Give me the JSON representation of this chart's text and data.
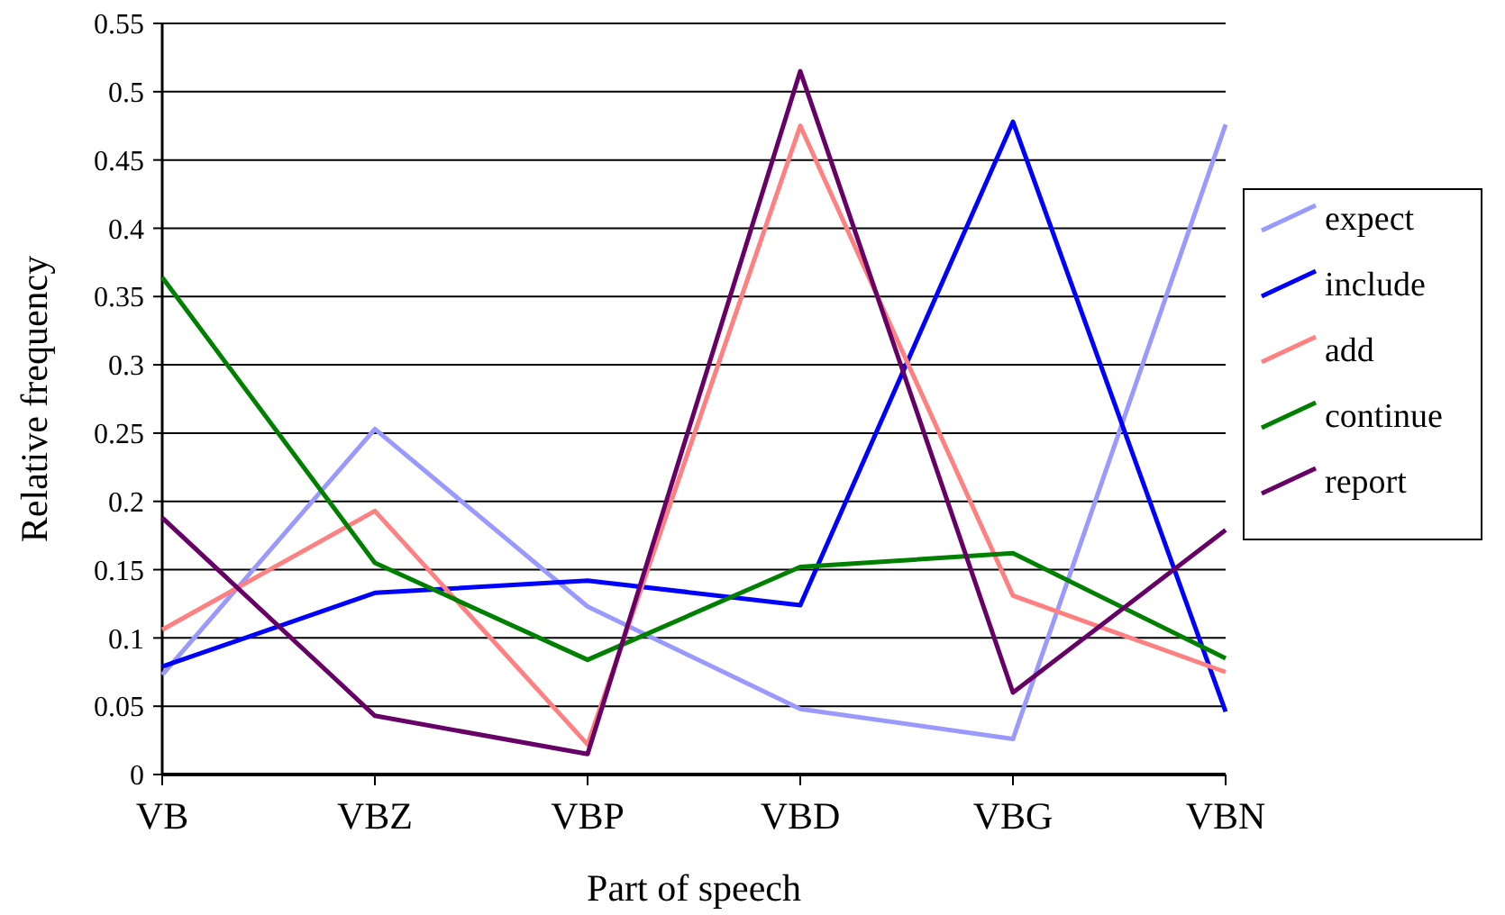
{
  "chart_data": {
    "type": "line",
    "xlabel": "Part of speech",
    "ylabel": "Relative frequency",
    "categories": [
      "VB",
      "VBZ",
      "VBP",
      "VBD",
      "VBG",
      "VBN"
    ],
    "series": [
      {
        "name": "expect",
        "color": "#9999ff",
        "values": [
          0.073,
          0.253,
          0.123,
          0.048,
          0.026,
          0.476
        ]
      },
      {
        "name": "include",
        "color": "#0000ff",
        "values": [
          0.079,
          0.133,
          0.142,
          0.124,
          0.478,
          0.046
        ]
      },
      {
        "name": "add",
        "color": "#ff8080",
        "values": [
          0.106,
          0.193,
          0.022,
          0.475,
          0.131,
          0.075
        ]
      },
      {
        "name": "continue",
        "color": "#008000",
        "values": [
          0.364,
          0.155,
          0.084,
          0.152,
          0.162,
          0.085
        ]
      },
      {
        "name": "report",
        "color": "#660066",
        "values": [
          0.188,
          0.043,
          0.015,
          0.515,
          0.06,
          0.179
        ]
      }
    ],
    "ylim": [
      0,
      0.55
    ],
    "yticks": [
      0,
      0.05,
      0.1,
      0.15,
      0.2,
      0.25,
      0.3,
      0.35,
      0.4,
      0.45,
      0.5,
      0.55
    ],
    "grid": "y",
    "legend": "right",
    "marker": "none",
    "line_style": "solid"
  }
}
